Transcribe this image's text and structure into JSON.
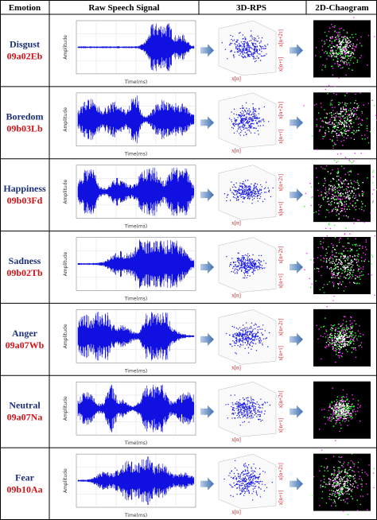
{
  "header": [
    "Emotion",
    "Raw Speech Signal",
    "3D-RPS",
    "2D-Chaogram"
  ],
  "axis_labels": {
    "amplitude": "Amplitude",
    "time": "Time(ms)",
    "xn": "x[n]",
    "xn_tau": "x[n+τ]",
    "xn_2tau": "x[n+2τ]"
  },
  "rows": [
    {
      "emotion": "Disgust",
      "code": "09a02Eb"
    },
    {
      "emotion": "Boredom",
      "code": "09b03Lb"
    },
    {
      "emotion": "Happiness",
      "code": "09b03Fd"
    },
    {
      "emotion": "Sadness",
      "code": "09b02Tb"
    },
    {
      "emotion": "Anger",
      "code": "09a07Wb"
    },
    {
      "emotion": "Neutral",
      "code": "09a07Na"
    },
    {
      "emotion": "Fear",
      "code": "09b10Aa"
    }
  ]
}
